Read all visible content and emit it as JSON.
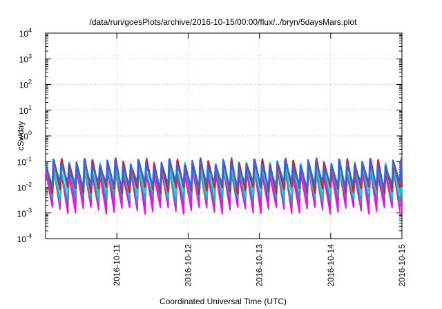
{
  "chart_data": {
    "type": "line",
    "title": "/data/run/goesPlots/archive/2016-10-15/00:00/flux/../bryn/5daysMars.plot",
    "xlabel": "Coordinated Universal Time (UTC)",
    "ylabel": "cSv/day",
    "yscale": "log",
    "ylim": [
      0.0001,
      10000
    ],
    "xlim": [
      "2016-10-10 00:00",
      "2016-10-15 00:00"
    ],
    "grid": true,
    "legend": "none",
    "y_ticks": [
      {
        "base": "10",
        "exp": "4"
      },
      {
        "base": "10",
        "exp": "3"
      },
      {
        "base": "10",
        "exp": "2"
      },
      {
        "base": "10",
        "exp": "1"
      },
      {
        "base": "10",
        "exp": "0"
      },
      {
        "base": "10",
        "exp": "-1"
      },
      {
        "base": "10",
        "exp": "-2"
      },
      {
        "base": "10",
        "exp": "-3"
      },
      {
        "base": "10",
        "exp": "-4"
      }
    ],
    "x_ticks": [
      "2016-10-11",
      "2016-10-12",
      "2016-10-13",
      "2016-10-14",
      "2016-10-15"
    ],
    "sawtooth_period_hours": 2.6,
    "series": [
      {
        "color": "#ff00ff",
        "peak": 0.045,
        "trough": 0.0013
      },
      {
        "color": "#cc22cc",
        "peak": 0.05,
        "trough": 0.0022
      },
      {
        "color": "#00bbaa",
        "peak": 0.06,
        "trough": 0.0035
      },
      {
        "color": "#20d0d0",
        "peak": 0.07,
        "trough": 0.006
      },
      {
        "color": "#00ccff",
        "peak": 0.08,
        "trough": 0.01
      },
      {
        "color": "#dd2020",
        "peak": 0.1,
        "trough": 0.008
      },
      {
        "color": "#3366dd",
        "peak": 0.09,
        "trough": 0.012
      }
    ]
  }
}
